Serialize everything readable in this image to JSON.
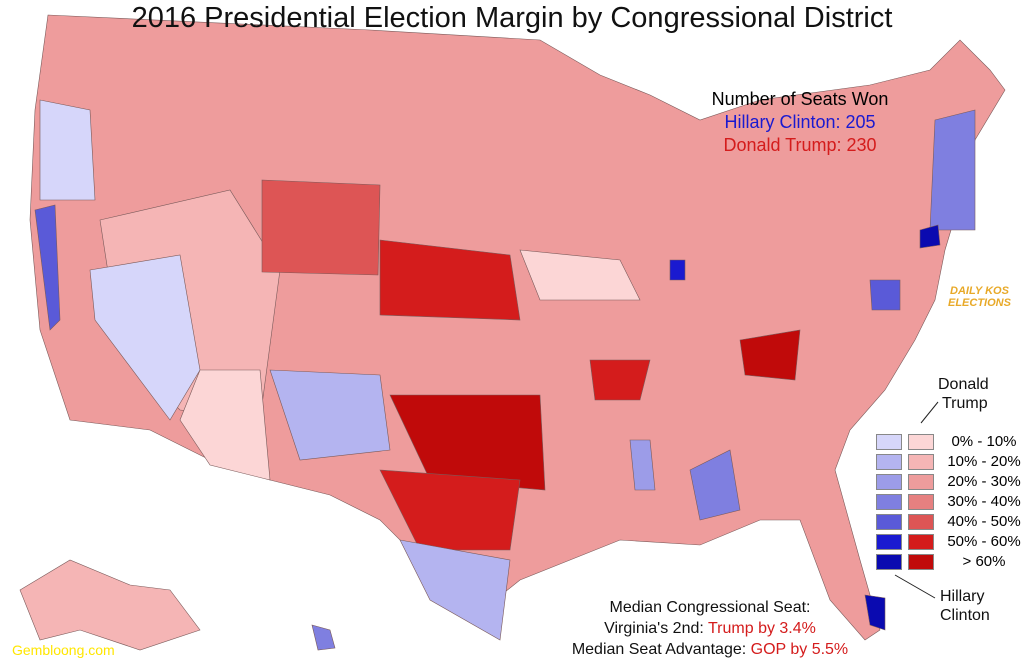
{
  "title": "2016 Presidential Election Margin by Congressional District",
  "seats": {
    "heading": "Number of Seats Won",
    "clinton": "Hillary Clinton: 205",
    "trump": "Donald Trump: 230"
  },
  "legend": {
    "trump_label_1": "Donald",
    "trump_label_2": "Trump",
    "clinton_label_1": "Hillary",
    "clinton_label_2": "Clinton",
    "ranges": [
      "0% - 10%",
      "10% - 20%",
      "20% - 30%",
      "30% - 40%",
      "40% - 50%",
      "50% - 60%",
      "> 60%"
    ],
    "blue_colors": [
      "#d6d6fa",
      "#b4b4f0",
      "#9c9ce8",
      "#7f7fe0",
      "#5a5ad8",
      "#1a1ad0",
      "#0a0ab0"
    ],
    "red_colors": [
      "#fcd6d6",
      "#f5b5b5",
      "#ee9c9c",
      "#e68080",
      "#dd5555",
      "#d41c1c",
      "#c00a0a"
    ]
  },
  "median": {
    "line1": "Median Congressional Seat:",
    "line2_prefix": "Virginia's 2nd: ",
    "line2_value": "Trump by 3.4%",
    "line3_prefix": "Median Seat Advantage: ",
    "line3_value": "GOP by 5.5%"
  },
  "logo": {
    "line1": "DAILY KOS",
    "line2": "ELECTIONS"
  },
  "watermark": "Gembloong.com"
}
